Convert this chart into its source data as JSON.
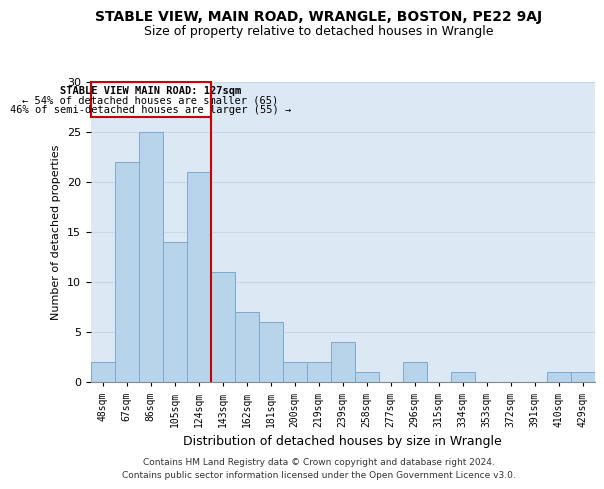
{
  "title": "STABLE VIEW, MAIN ROAD, WRANGLE, BOSTON, PE22 9AJ",
  "subtitle": "Size of property relative to detached houses in Wrangle",
  "xlabel": "Distribution of detached houses by size in Wrangle",
  "ylabel": "Number of detached properties",
  "bar_labels": [
    "48sqm",
    "67sqm",
    "86sqm",
    "105sqm",
    "124sqm",
    "143sqm",
    "162sqm",
    "181sqm",
    "200sqm",
    "219sqm",
    "239sqm",
    "258sqm",
    "277sqm",
    "296sqm",
    "315sqm",
    "334sqm",
    "353sqm",
    "372sqm",
    "391sqm",
    "410sqm",
    "429sqm"
  ],
  "bar_values": [
    2,
    22,
    25,
    14,
    21,
    11,
    7,
    6,
    2,
    2,
    4,
    1,
    0,
    2,
    0,
    1,
    0,
    0,
    0,
    1,
    1
  ],
  "bar_color": "#b8d4ea",
  "bar_edge_color": "#7aaace",
  "vline_color": "#cc0000",
  "vline_x_index": 4,
  "ylim": [
    0,
    30
  ],
  "yticks": [
    0,
    5,
    10,
    15,
    20,
    25,
    30
  ],
  "annotation_title": "STABLE VIEW MAIN ROAD: 127sqm",
  "annotation_line1": "← 54% of detached houses are smaller (65)",
  "annotation_line2": "46% of semi-detached houses are larger (55) →",
  "annotation_box_color": "#ffffff",
  "annotation_box_edge": "#cc0000",
  "footer_line1": "Contains HM Land Registry data © Crown copyright and database right 2024.",
  "footer_line2": "Contains public sector information licensed under the Open Government Licence v3.0.",
  "grid_color": "#c8d8e8",
  "background_color": "#dce8f4"
}
